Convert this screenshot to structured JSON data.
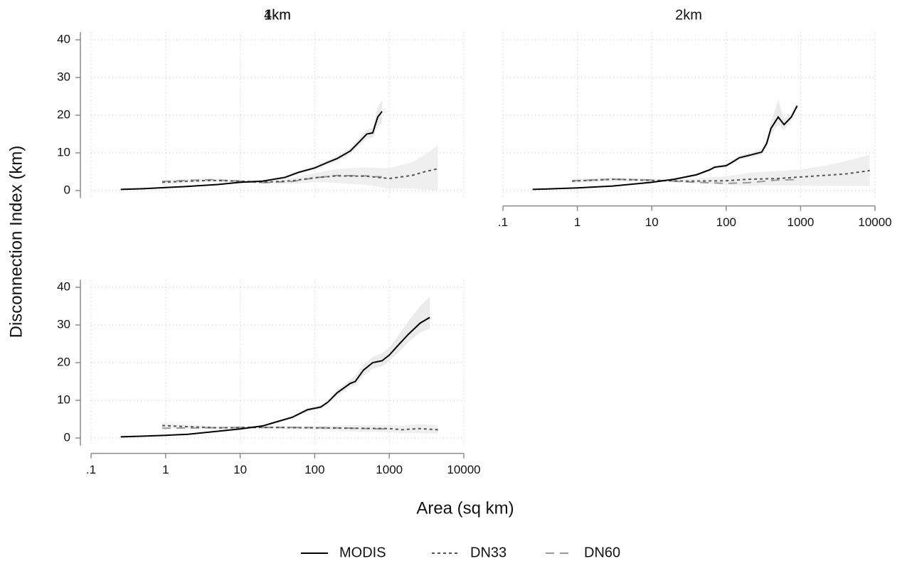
{
  "chart_data": [
    {
      "type": "line",
      "title": "1km",
      "ylabel": "Disconnection Index (km)",
      "legend": "bottom",
      "xscale": "log",
      "xlim": [
        0.1,
        10000
      ],
      "xticks": [
        0.1,
        1,
        10,
        100,
        1000,
        10000
      ],
      "ylim": [
        -2,
        42
      ],
      "yticks": [
        0,
        10,
        20,
        30,
        40
      ],
      "grid": true,
      "x_axis": false,
      "y_axis": true,
      "series": [
        {
          "name": "MODIS",
          "color": "#000000",
          "line_style": "solid",
          "band_color": "#e6e6e6",
          "x": [
            0.25,
            0.5,
            1,
            2,
            5,
            10,
            20,
            40,
            60,
            100,
            150,
            200,
            300,
            400,
            500,
            600,
            700,
            800
          ],
          "values": [
            0.3,
            0.5,
            0.8,
            1.1,
            1.6,
            2.2,
            2.5,
            3.5,
            4.8,
            6,
            7.5,
            8.5,
            10.5,
            13,
            15,
            15.3,
            19.5,
            21
          ],
          "lower": [
            0.2,
            0.4,
            0.7,
            1,
            1.5,
            2,
            2.3,
            3.2,
            4.4,
            5.5,
            6.9,
            7.8,
            9.7,
            12,
            13.8,
            14,
            17,
            18
          ],
          "upper": [
            0.4,
            0.6,
            0.9,
            1.2,
            1.7,
            2.4,
            2.7,
            3.8,
            5.2,
            6.5,
            8.1,
            9.2,
            11.3,
            14,
            16.2,
            16.6,
            22,
            24
          ]
        },
        {
          "name": "DN33",
          "color": "#555555",
          "line_style": "dotted",
          "band_color": "#ebebeb",
          "x": [
            0.9,
            2,
            4,
            10,
            20,
            50,
            100,
            200,
            500,
            1000,
            2000,
            3000,
            4500
          ],
          "values": [
            2.2,
            2.5,
            2.7,
            2.5,
            2.2,
            2.6,
            3.4,
            3.9,
            3.8,
            3.2,
            4,
            5,
            5.8
          ],
          "lower": [
            1.5,
            2,
            2.3,
            2.2,
            1.8,
            1.8,
            2.2,
            2,
            1.5,
            0.5,
            0.5,
            0.3,
            0
          ],
          "upper": [
            2.9,
            3,
            3.1,
            2.8,
            2.6,
            3.4,
            4.6,
            5.8,
            6.1,
            5.9,
            7.5,
            9.5,
            12
          ]
        },
        {
          "name": "DN60",
          "color": "#9a9a9a",
          "line_style": "dashed",
          "x": [
            0.9,
            2,
            4,
            10,
            20,
            50,
            100,
            200,
            500,
            800
          ],
          "values": [
            2.4,
            2.7,
            2.9,
            2.5,
            2.1,
            2.4,
            3.4,
            4,
            3.9,
            3.6
          ]
        }
      ]
    },
    {
      "type": "line",
      "title": "2km",
      "xscale": "log",
      "xlim": [
        0.1,
        10000
      ],
      "xticks": [
        {
          "value": 0.1,
          "label": ".1"
        },
        1,
        10,
        100,
        1000,
        10000
      ],
      "ylim": [
        -2,
        42
      ],
      "yticks": [
        0,
        10,
        20,
        30,
        40
      ],
      "grid": true,
      "x_axis": true,
      "y_axis": false,
      "series": [
        {
          "name": "MODIS",
          "color": "#000000",
          "line_style": "solid",
          "band_color": "#e6e6e6",
          "x": [
            0.25,
            1,
            3,
            10,
            20,
            40,
            60,
            70,
            100,
            120,
            150,
            200,
            300,
            350,
            400,
            500,
            600,
            750,
            900
          ],
          "values": [
            0.3,
            0.7,
            1.2,
            2.2,
            3,
            4.2,
            5.5,
            6.2,
            6.6,
            7.5,
            8.7,
            9.3,
            10.2,
            12.5,
            16.5,
            19.5,
            17.5,
            19.5,
            22.5
          ],
          "lower": [
            0.2,
            0.6,
            1.1,
            2,
            2.8,
            3.9,
            5.1,
            5.8,
            6.2,
            7,
            8.2,
            8.7,
            9.5,
            11.5,
            15,
            17.5,
            16,
            18.5,
            22
          ],
          "upper": [
            0.4,
            0.8,
            1.3,
            2.4,
            3.2,
            4.5,
            5.9,
            6.6,
            7,
            8,
            9.2,
            9.9,
            10.9,
            13.5,
            18,
            24,
            19,
            20.5,
            23
          ]
        },
        {
          "name": "DN33",
          "color": "#555555",
          "line_style": "dotted",
          "band_color": "#ebebeb",
          "x": [
            0.85,
            3,
            10,
            30,
            100,
            200,
            500,
            1000,
            2000,
            4000,
            8500
          ],
          "values": [
            2.5,
            3,
            2.7,
            2.5,
            2.6,
            3,
            3.2,
            3.6,
            4,
            4.4,
            5.3
          ],
          "lower": [
            1.9,
            2.5,
            2.3,
            2,
            1.5,
            1.3,
            1.3,
            1.3,
            1.2,
            1.2,
            1.2
          ],
          "upper": [
            3.1,
            3.5,
            3.1,
            3.1,
            3.8,
            4.7,
            5.2,
            5.6,
            6.5,
            7.8,
            9.5
          ]
        },
        {
          "name": "DN60",
          "color": "#9a9a9a",
          "line_style": "dashed",
          "x": [
            0.85,
            3,
            10,
            30,
            100,
            200,
            500,
            900
          ],
          "values": [
            2.6,
            3,
            2.8,
            2.3,
            1.9,
            2.1,
            2.8,
            2.9
          ]
        }
      ]
    },
    {
      "type": "line",
      "title": "4km",
      "xlabel": "Area (sq km)",
      "xscale": "log",
      "xlim": [
        0.1,
        10000
      ],
      "xticks": [
        {
          "value": 0.1,
          "label": ".1"
        },
        1,
        10,
        100,
        1000,
        10000
      ],
      "ylim": [
        -2,
        42
      ],
      "yticks": [
        0,
        10,
        20,
        30,
        40
      ],
      "grid": true,
      "x_axis": true,
      "y_axis": true,
      "series": [
        {
          "name": "MODIS",
          "color": "#000000",
          "line_style": "solid",
          "band_color": "#e6e6e6",
          "x": [
            0.25,
            0.5,
            1,
            2,
            5,
            10,
            20,
            50,
            80,
            120,
            150,
            200,
            300,
            350,
            450,
            600,
            800,
            1000,
            1300,
            1800,
            2600,
            3500
          ],
          "values": [
            0.3,
            0.5,
            0.7,
            1,
            1.8,
            2.4,
            3.2,
            5.5,
            7.5,
            8.2,
            9.5,
            12,
            14.5,
            15,
            18,
            20,
            20.5,
            22,
            24.5,
            27.5,
            30.5,
            32
          ],
          "lower": [
            0.2,
            0.4,
            0.6,
            0.9,
            1.6,
            2.2,
            3,
            5.1,
            7,
            7.7,
            8.9,
            11.2,
            13.5,
            14,
            16.5,
            18.5,
            19,
            20.5,
            22.5,
            25.5,
            28,
            29
          ],
          "upper": [
            0.4,
            0.6,
            0.8,
            1.1,
            2,
            2.6,
            3.4,
            5.9,
            8,
            8.7,
            10.1,
            12.8,
            15.5,
            16.5,
            19.5,
            21.5,
            22.5,
            24,
            27,
            31,
            35,
            37.5
          ]
        },
        {
          "name": "DN33",
          "color": "#555555",
          "line_style": "dotted",
          "band_color": "#ebebeb",
          "x": [
            0.9,
            2,
            5,
            10,
            30,
            100,
            300,
            1000,
            1500,
            2500,
            4500
          ],
          "values": [
            3.3,
            3,
            2.7,
            2.8,
            2.8,
            2.7,
            2.6,
            2.5,
            2.2,
            2.5,
            2.2
          ],
          "lower": [
            2.6,
            2.5,
            2.3,
            2.5,
            2.4,
            2.2,
            1.8,
            1.5,
            1.3,
            1.3,
            1.1
          ],
          "upper": [
            4,
            3.5,
            3.1,
            3.1,
            3.2,
            3.2,
            3.4,
            3.5,
            3.3,
            3.7,
            3.4
          ]
        },
        {
          "name": "DN60",
          "color": "#9a9a9a",
          "line_style": "dashed",
          "x": [
            0.9,
            3,
            10,
            50,
            200,
            500,
            1000
          ],
          "values": [
            2.6,
            2.7,
            2.8,
            2.8,
            2.7,
            2.5,
            2.4
          ]
        }
      ]
    }
  ]
}
